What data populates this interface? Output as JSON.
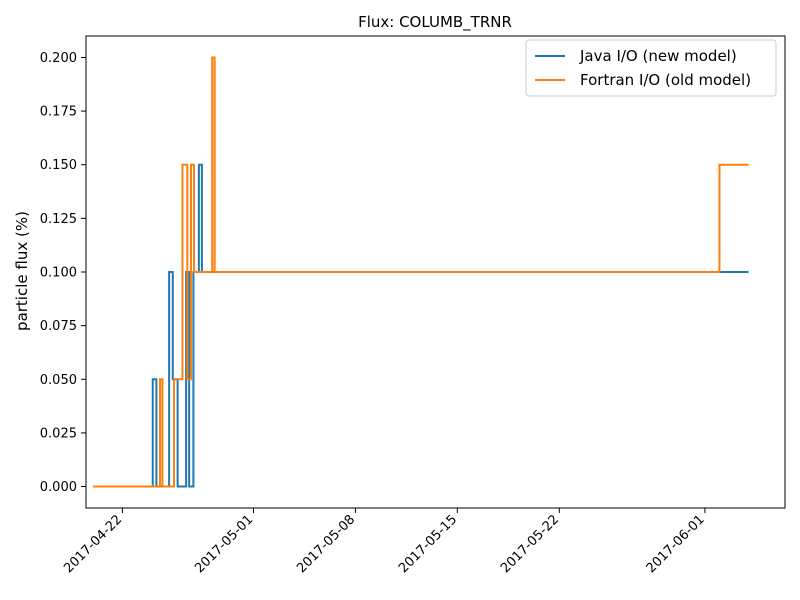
{
  "chart_data": {
    "type": "line",
    "title": "Flux: COLUMB_TRNR",
    "xlabel": "",
    "ylabel": "particle flux (%)",
    "x_ticks": [
      "2017-04-22",
      "2017-05-01",
      "2017-05-08",
      "2017-05-15",
      "2017-05-22",
      "2017-06-01"
    ],
    "xlim": [
      "2017-04-19 12:00",
      "2017-06-06 12:00"
    ],
    "y_ticks": [
      "0.000",
      "0.025",
      "0.050",
      "0.075",
      "0.100",
      "0.125",
      "0.150",
      "0.175",
      "0.200"
    ],
    "ylim": [
      -0.01,
      0.21
    ],
    "legend_position": "top-right",
    "step_style": "post",
    "series": [
      {
        "name": "Java I/O (new model)",
        "color": "#1f77b4",
        "points": [
          [
            "2017-04-20 00:00",
            0.0
          ],
          [
            "2017-04-24 02:00",
            0.05
          ],
          [
            "2017-04-24 08:00",
            0.0
          ],
          [
            "2017-04-25 05:00",
            0.1
          ],
          [
            "2017-04-25 11:00",
            0.05
          ],
          [
            "2017-04-25 19:00",
            0.0
          ],
          [
            "2017-04-26 09:00",
            0.1
          ],
          [
            "2017-04-26 14:00",
            0.0
          ],
          [
            "2017-04-26 21:00",
            0.1
          ],
          [
            "2017-04-27 06:00",
            0.15
          ],
          [
            "2017-04-27 11:00",
            0.1
          ],
          [
            "2017-06-04 00:00",
            0.1
          ]
        ]
      },
      {
        "name": "Fortran I/O (old model)",
        "color": "#ff7f0e",
        "points": [
          [
            "2017-04-20 00:00",
            0.0
          ],
          [
            "2017-04-24 14:00",
            0.05
          ],
          [
            "2017-04-24 18:00",
            0.0
          ],
          [
            "2017-04-25 13:00",
            0.05
          ],
          [
            "2017-04-26 03:00",
            0.15
          ],
          [
            "2017-04-26 11:00",
            0.05
          ],
          [
            "2017-04-26 17:00",
            0.15
          ],
          [
            "2017-04-26 22:00",
            0.1
          ],
          [
            "2017-04-28 04:00",
            0.2
          ],
          [
            "2017-04-28 08:00",
            0.1
          ],
          [
            "2017-06-02 00:00",
            0.15
          ],
          [
            "2017-06-04 00:00",
            0.15
          ]
        ]
      }
    ]
  }
}
